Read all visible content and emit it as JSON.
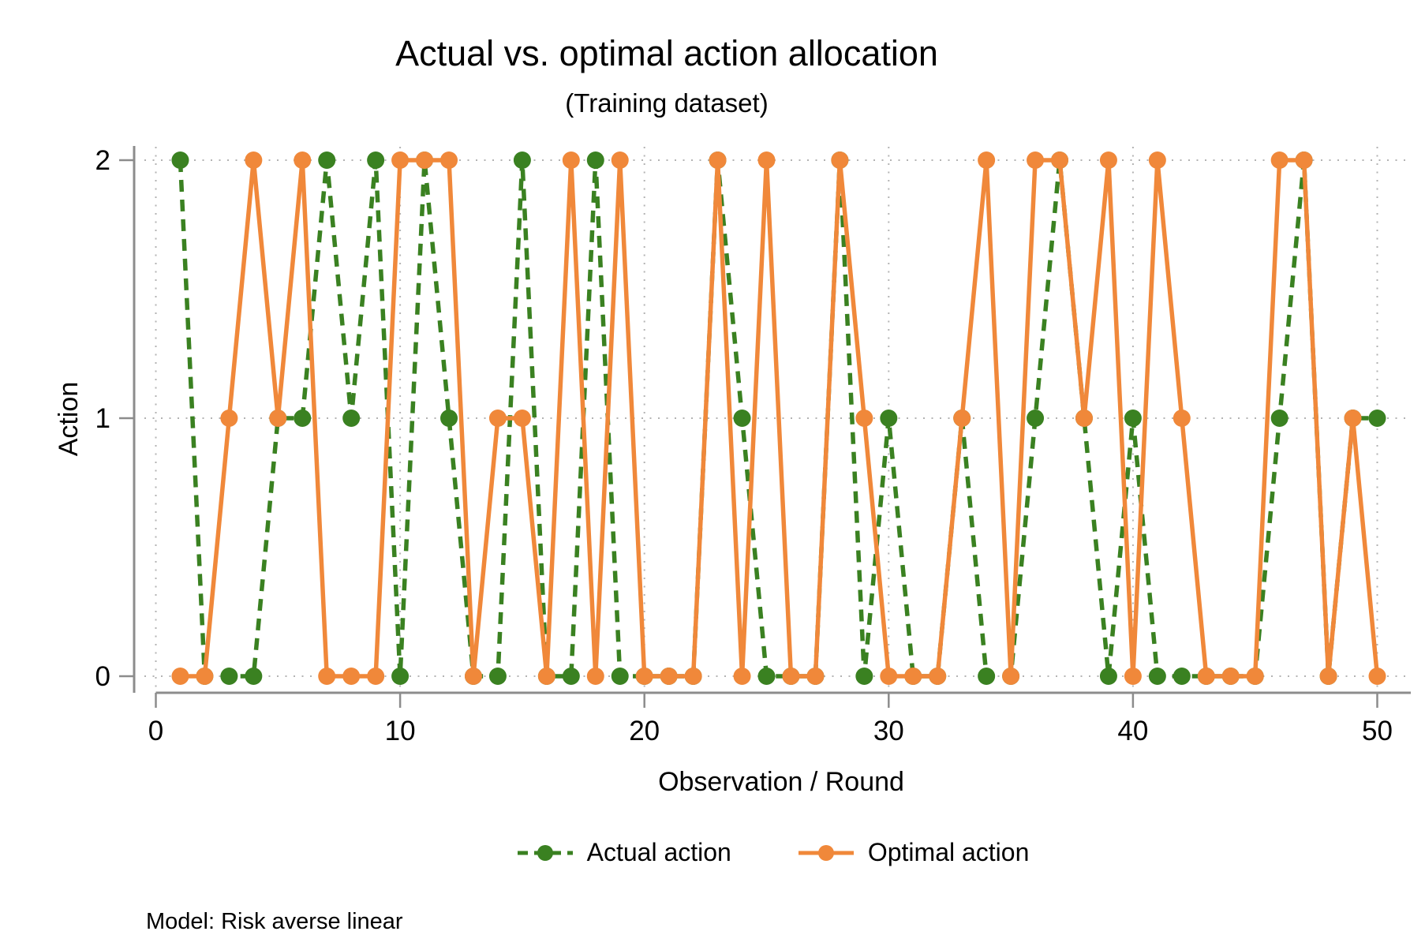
{
  "title": "Actual vs. optimal action allocation",
  "subtitle": "(Training dataset)",
  "note": "Model: Risk averse linear",
  "chart_data": {
    "type": "line",
    "title": "Actual vs. optimal action allocation",
    "subtitle": "(Training dataset)",
    "xlabel": "Observation / Round",
    "ylabel": "Action",
    "note": "Model: Risk averse linear",
    "xticks": [
      0,
      10,
      20,
      30,
      40,
      50
    ],
    "yticks": [
      0,
      1,
      2
    ],
    "xlim": [
      0,
      51.5
    ],
    "ylim": [
      0,
      2
    ],
    "grid": "dotted",
    "legend_position": "bottom",
    "axis_color": "#8c8c8c",
    "grid_color": "#b3b3b3",
    "x": [
      1,
      2,
      3,
      4,
      5,
      6,
      7,
      8,
      9,
      10,
      11,
      12,
      13,
      14,
      15,
      16,
      17,
      18,
      19,
      20,
      21,
      22,
      23,
      24,
      25,
      26,
      27,
      28,
      29,
      30,
      31,
      32,
      33,
      34,
      35,
      36,
      37,
      38,
      39,
      40,
      41,
      42,
      43,
      44,
      45,
      46,
      47,
      48,
      49,
      50
    ],
    "series": [
      {
        "name": "Actual action",
        "color": "#3A8121",
        "style": "dashed",
        "marker": "circle",
        "values": [
          2,
          0,
          0,
          0,
          1,
          1,
          2,
          1,
          2,
          0,
          2,
          1,
          0,
          0,
          2,
          0,
          0,
          2,
          0,
          0,
          0,
          0,
          2,
          1,
          0,
          0,
          0,
          2,
          0,
          1,
          0,
          0,
          1,
          0,
          0,
          1,
          2,
          1,
          0,
          1,
          0,
          0,
          0,
          0,
          0,
          1,
          2,
          0,
          1,
          1
        ]
      },
      {
        "name": "Optimal action",
        "color": "#F0883A",
        "style": "solid",
        "marker": "circle",
        "values": [
          0,
          0,
          1,
          2,
          1,
          2,
          0,
          0,
          0,
          2,
          2,
          2,
          0,
          1,
          1,
          0,
          2,
          0,
          2,
          0,
          0,
          0,
          2,
          0,
          2,
          0,
          0,
          2,
          1,
          0,
          0,
          0,
          1,
          2,
          0,
          2,
          2,
          1,
          2,
          0,
          2,
          1,
          0,
          0,
          0,
          2,
          2,
          0,
          1,
          0
        ]
      }
    ]
  }
}
